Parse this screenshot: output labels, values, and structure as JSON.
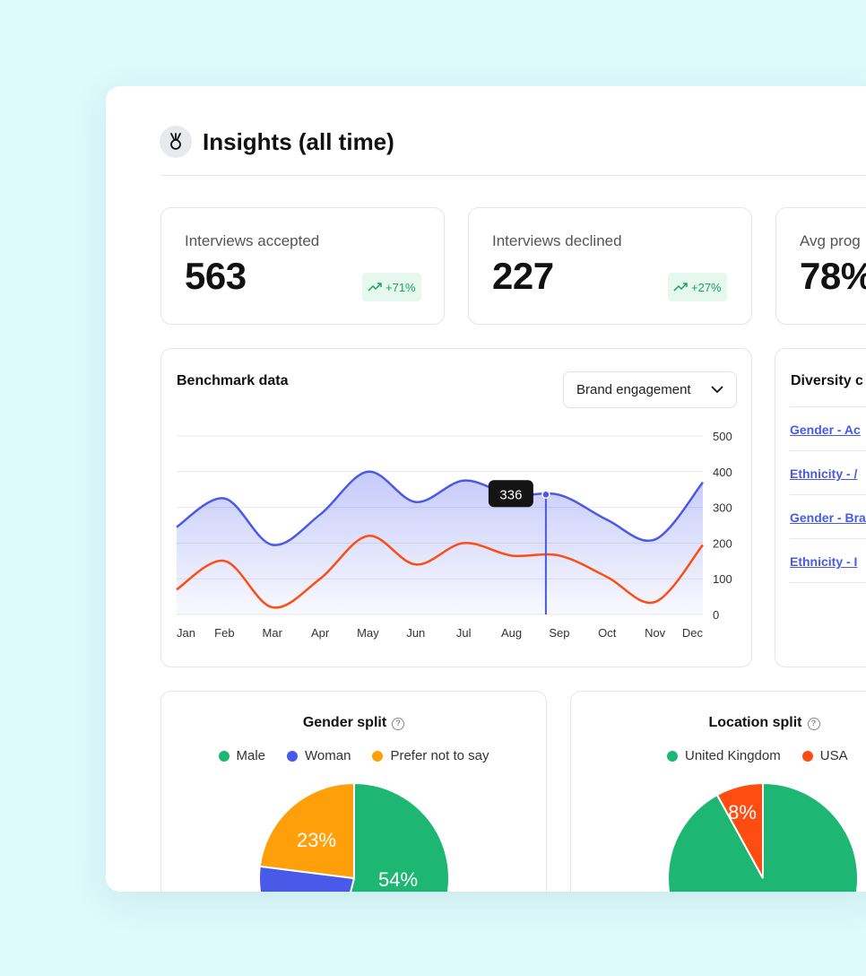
{
  "header": {
    "title": "Insights (all time)",
    "icon": "medal-icon"
  },
  "stats": [
    {
      "label": "Interviews accepted",
      "value": "563",
      "change": "+71%"
    },
    {
      "label": "Interviews declined",
      "value": "227",
      "change": "+27%"
    },
    {
      "label": "Avg prog",
      "value": "78%"
    }
  ],
  "benchmark": {
    "title": "Benchmark data",
    "dropdown": "Brand engagement",
    "tooltip": "336"
  },
  "diversity": {
    "title": "Diversity c",
    "links": [
      "Gender - Ac",
      "Ethnicity - /",
      "Gender - Bra",
      "Ethnicity - I"
    ]
  },
  "gender_split": {
    "title": "Gender split",
    "legend": [
      "Male",
      "Woman",
      "Prefer not to say"
    ],
    "labels": [
      "23%",
      "54%"
    ]
  },
  "location_split": {
    "title": "Location split",
    "legend": [
      "United Kingdom",
      "USA"
    ],
    "labels": [
      "8%"
    ]
  },
  "colors": {
    "accent": "#4a5ae8",
    "orange_line": "#ff4d12",
    "green": "#1db673",
    "amber": "#ff9f0a",
    "badge_green": "#17a35a"
  },
  "chart_data": [
    {
      "type": "line",
      "title": "Benchmark data",
      "categories": [
        "Jan",
        "Feb",
        "Mar",
        "Apr",
        "May",
        "Jun",
        "Jul",
        "Aug",
        "Sep",
        "Oct",
        "Nov",
        "Dec"
      ],
      "ylim": [
        0,
        500
      ],
      "yticks": [
        "500",
        "400",
        "300",
        "200",
        "100",
        "0"
      ],
      "grid": true,
      "series": [
        {
          "values": [
            245,
            325,
            195,
            280,
            400,
            315,
            375,
            335,
            335,
            265,
            210,
            370
          ]
        },
        {
          "values": [
            70,
            150,
            20,
            100,
            220,
            140,
            200,
            165,
            165,
            105,
            35,
            195
          ]
        }
      ],
      "highlight": {
        "category": "Sep",
        "value": 336
      }
    },
    {
      "type": "pie",
      "title": "Gender split",
      "categories": [
        "Male",
        "Woman",
        "Prefer not to say"
      ],
      "values": [
        54,
        23,
        23
      ]
    },
    {
      "type": "pie",
      "title": "Location split",
      "categories": [
        "United Kingdom",
        "USA"
      ],
      "values": [
        92,
        8
      ]
    }
  ]
}
